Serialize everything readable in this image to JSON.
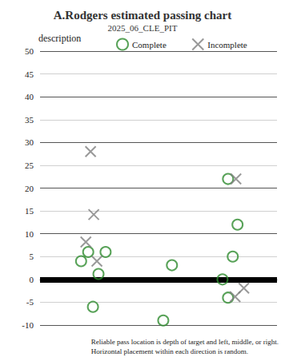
{
  "chart_data": {
    "type": "scatter",
    "title": "A.Rodgers estimated passing chart",
    "subtitle": "2025_06_CLE_PIT",
    "legend_title": "description",
    "caption": [
      "Reliable pass location is depth of target and left, middle, or right.",
      "Horizontal placement within each direction is random."
    ],
    "xlim": [
      0,
      3
    ],
    "ylim": [
      -10,
      50
    ],
    "yticks": [
      -10,
      -5,
      0,
      5,
      10,
      15,
      20,
      25,
      30,
      35,
      40,
      45,
      50
    ],
    "reference_lines": [
      0
    ],
    "grid": true,
    "legend": "top",
    "tick_labels": "y",
    "series": [
      {
        "name": "Complete",
        "color": "#2e8b2e",
        "marker": "circle",
        "x": [
          0.52,
          0.61,
          0.74,
          0.83,
          0.67,
          1.67,
          1.56,
          2.38,
          2.5,
          2.44,
          2.31,
          2.38
        ],
        "values": [
          4,
          6,
          1.2,
          6,
          -6,
          3.1,
          -9,
          22,
          12,
          5,
          0,
          -4
        ]
      },
      {
        "name": "Incomplete",
        "color": "#808080",
        "marker": "x",
        "x": [
          0.64,
          0.68,
          0.58,
          0.72,
          2.48,
          2.47,
          2.58
        ],
        "values": [
          28,
          14.2,
          8.2,
          4,
          22,
          -3.8,
          -1.9
        ]
      }
    ]
  }
}
